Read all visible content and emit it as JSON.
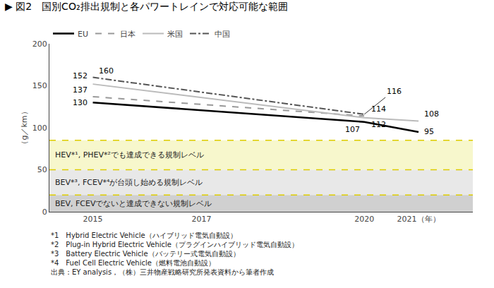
{
  "chart_data": {
    "type": "line",
    "title": "▶ 図2　国別CO₂排出規制と各パワートレインで対応可能な範囲",
    "ylabel": "（g／km）",
    "xlim": [
      2014.2,
      2022.0
    ],
    "xticks": [
      2015,
      2017,
      2020,
      {
        "value": 2021,
        "label": "2021（年）"
      }
    ],
    "ylim": [
      0,
      200
    ],
    "yticks": [
      0,
      50,
      100,
      150,
      200
    ],
    "grid": false,
    "legend": "upper left",
    "data_labels": true,
    "series": [
      {
        "name": "EU",
        "color": "#000000",
        "line_style": "solid",
        "x": [
          2015,
          2020,
          2021
        ],
        "values": [
          130,
          107,
          95
        ]
      },
      {
        "name": "日本",
        "color": "#999999",
        "line_style": "dashed",
        "x": [
          2015,
          2020
        ],
        "values": [
          137,
          114
        ]
      },
      {
        "name": "米国",
        "color": "#bbbbbb",
        "line_style": "solid",
        "x": [
          2015,
          2020,
          2021
        ],
        "values": [
          152,
          112,
          108
        ]
      },
      {
        "name": "中国",
        "color": "#555555",
        "line_style": "dashdot",
        "x": [
          2015,
          2020
        ],
        "values": [
          160,
          116
        ]
      }
    ],
    "bands": [
      {
        "from": 50,
        "to": 85,
        "label": "HEV*¹, PHEV*²でも達成できる規制レベル",
        "color": "#f7f7cc"
      },
      {
        "from": 20,
        "to": 50,
        "label": "BEV*³, FCEV*⁴が台頭し始める規制レベル",
        "color": "#e8e8e8"
      },
      {
        "from": 0,
        "to": 20,
        "label": "BEV, FCEVでないと達成できない規制レベル",
        "color": "#d0d0d0"
      }
    ],
    "reference_lines": {
      "values": [
        85,
        50,
        20
      ],
      "color": "#ddcc00",
      "line_style": "dashed"
    },
    "footnotes": [
      "*1　Hybrid Electric Vehicle（ハイブリッド電気自動設）",
      "*2　Plug-in Hybrid Electric Vehicle（プラグインハイブリッド電気自動設）",
      "*3　Battery Electric Vehicle（バッテリー式電気自動設）",
      "*4　Fuel Cell Electric Vehicle（燃料電池自動設）",
      "出典：EY analysis，（株）三井物産戦略研究所発表資料から筆者作成"
    ]
  }
}
